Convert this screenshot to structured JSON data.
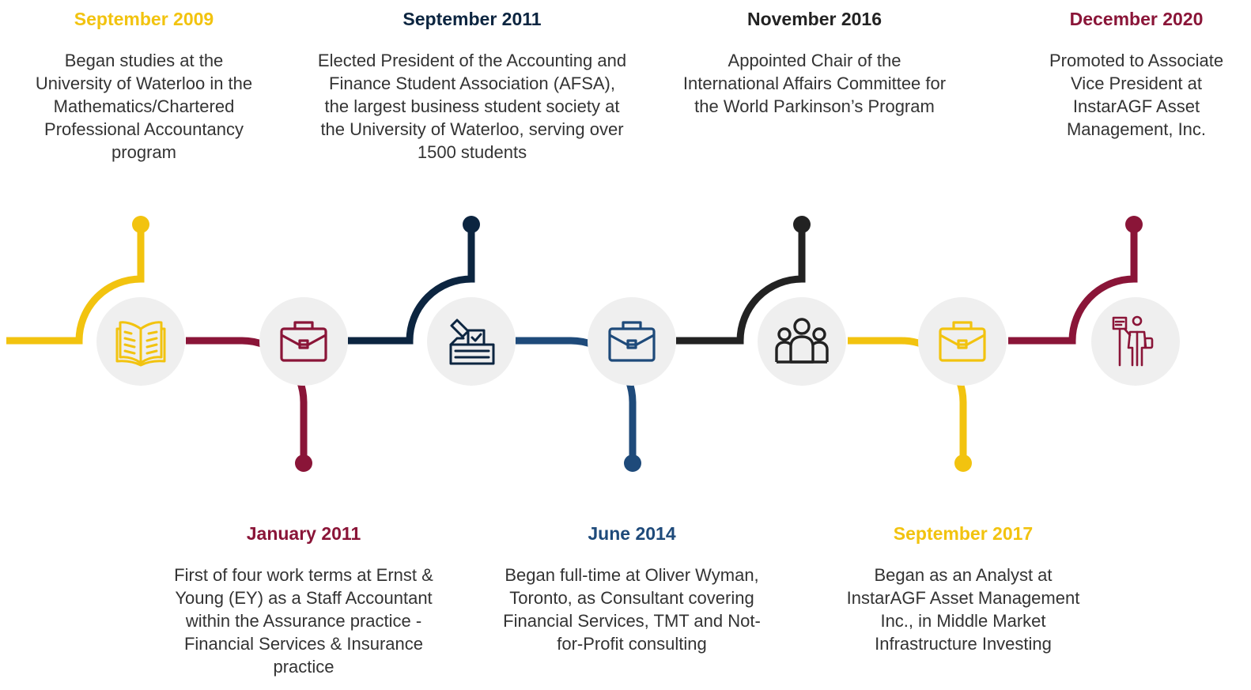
{
  "colors": {
    "yellow": "#f2c30f",
    "maroon": "#8a1538",
    "navy": "#0c2540",
    "blue": "#1e4a7a",
    "black": "#222222",
    "circle_bg": "#efefef",
    "text": "#333333"
  },
  "milestones": [
    {
      "date": "September 2009",
      "description": "Began studies at the University of Waterloo in the Mathematics/Chartered Professional Accountancy program",
      "icon": "open-book-icon",
      "color": "yellow"
    },
    {
      "date": "January 2011",
      "description": "First of four work terms at Ernst & Young (EY) as a Staff Accountant within the Assurance practice - Financial Services & Insurance practice",
      "icon": "briefcase-icon",
      "color": "maroon"
    },
    {
      "date": "September 2011",
      "description": "Elected President of the Accounting and Finance Student Association (AFSA), the largest business student society at the University of Waterloo, serving over 1500 students",
      "icon": "ballot-box-icon",
      "color": "navy"
    },
    {
      "date": "June 2014",
      "description": "Began full-time at Oliver Wyman, Toronto, as Consultant covering Financial Services, TMT and Not-for-Profit consulting",
      "icon": "briefcase-icon",
      "color": "blue"
    },
    {
      "date": "November 2016",
      "description": "Appointed Chair of the International Affairs Committee for the World Parkinson’s Program",
      "icon": "group-icon",
      "color": "black"
    },
    {
      "date": "September 2017",
      "description": "Began as an Analyst at InstarAGF Asset Management Inc., in Middle Market Infrastructure Investing",
      "icon": "briefcase-icon",
      "color": "yellow"
    },
    {
      "date": "December 2020",
      "description": "Promoted to Associate Vice President at InstarAGF Asset Management, Inc.",
      "icon": "presenter-icon",
      "color": "maroon"
    }
  ]
}
